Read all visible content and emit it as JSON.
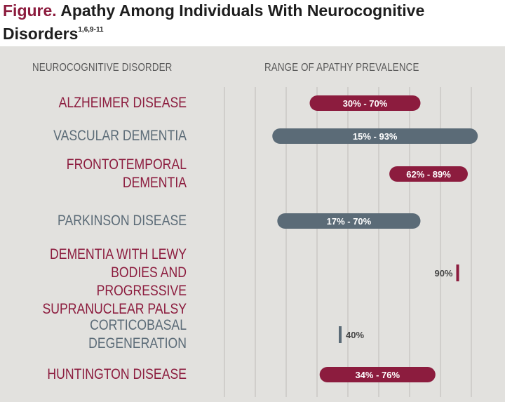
{
  "title": {
    "label": "Figure.",
    "text": "Apathy Among Individuals With Neurocognitive Disorders",
    "refs": "1,6,9-11"
  },
  "colors": {
    "maroon": "#8c1c3e",
    "slate": "#5b6b77",
    "panel": "#e2e1de",
    "gridline": "#bdbcb8"
  },
  "chart_data": {
    "type": "bar",
    "orientation": "horizontal-range",
    "column_headers": {
      "category": "NEUROCOGNITIVE DISORDER",
      "value": "RANGE OF APATHY PREVALENCE"
    },
    "xlim": [
      0,
      100
    ],
    "grid": true,
    "rows": [
      {
        "name": "ALZHEIMER DISEASE",
        "low": 30,
        "high": 70,
        "label": "30% - 70%",
        "color": "maroon"
      },
      {
        "name": "VASCULAR DEMENTIA",
        "low": 15,
        "high": 93,
        "label": "15% - 93%",
        "color": "slate"
      },
      {
        "name": "FRONTOTEMPORAL\nDEMENTIA",
        "low": 62,
        "high": 89,
        "label": "62% - 89%",
        "color": "maroon"
      },
      {
        "name": "PARKINSON DISEASE",
        "low": 17,
        "high": 70,
        "label": "17% - 70%",
        "color": "slate"
      },
      {
        "name": "DEMENTIA WITH LEWY\nBODIES AND PROGRESSIVE\nSUPRANUCLEAR PALSY",
        "low": 90,
        "high": 90,
        "label": "90%",
        "color": "maroon"
      },
      {
        "name": "CORTICOBASAL\nDEGENERATION",
        "low": 40,
        "high": 40,
        "label": "40%",
        "color": "slate"
      },
      {
        "name": "HUNTINGTON DISEASE",
        "low": 34,
        "high": 76,
        "label": "34% - 76%",
        "color": "maroon"
      }
    ]
  }
}
